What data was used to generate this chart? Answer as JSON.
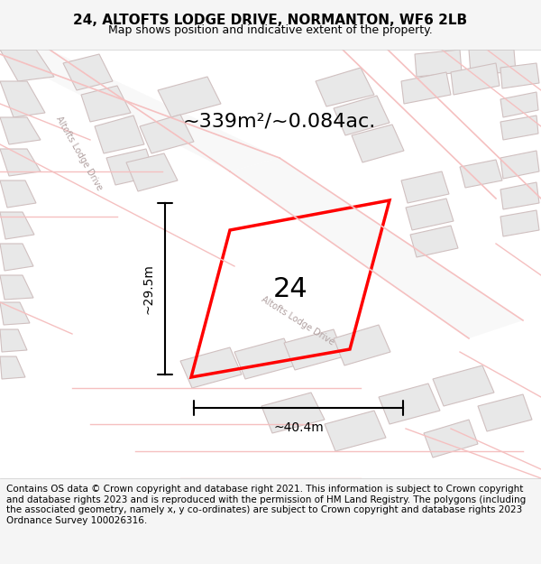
{
  "title": "24, ALTOFTS LODGE DRIVE, NORMANTON, WF6 2LB",
  "subtitle": "Map shows position and indicative extent of the property.",
  "area_text": "~339m²/~0.084ac.",
  "width_label": "~40.4m",
  "height_label": "~29.5m",
  "number_label": "24",
  "footer_text": "Contains OS data © Crown copyright and database right 2021. This information is subject to Crown copyright and database rights 2023 and is reproduced with the permission of HM Land Registry. The polygons (including the associated geometry, namely x, y co-ordinates) are subject to Crown copyright and database rights 2023 Ordnance Survey 100026316.",
  "bg_color": "#f5f5f5",
  "map_bg": "#ffffff",
  "road_color": "#f5c0c0",
  "building_color": "#e8e8e8",
  "building_stroke": "#d0c0c0",
  "highlight_color": "#ff0000",
  "text_color": "#333333",
  "road_label_color": "#b0a0a0",
  "title_fontsize": 11,
  "subtitle_fontsize": 9,
  "area_fontsize": 16,
  "label_fontsize": 10,
  "number_fontsize": 22,
  "footer_fontsize": 7.5
}
